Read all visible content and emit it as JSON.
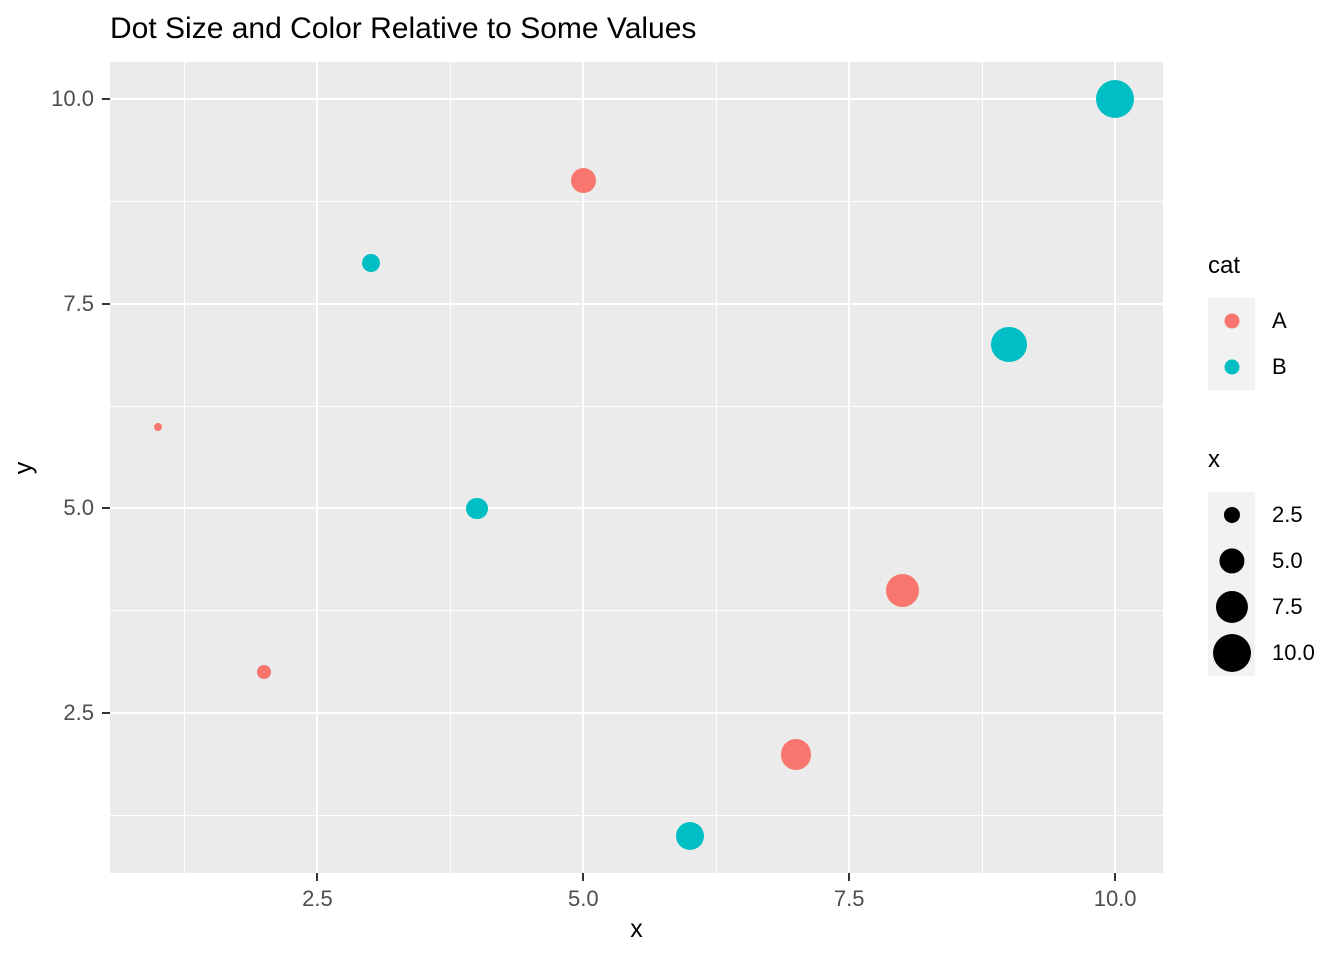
{
  "title": "Dot Size and Color Relative to Some Values",
  "colors": {
    "background": "#FFFFFF",
    "panel_bg": "#EBEBEB",
    "grid": "#FFFFFF",
    "legend_key_bg": "#F2F2F2",
    "tick_text": "#4D4D4D",
    "tick_mark": "#333333",
    "text": "#000000",
    "cat_A": "#F8766D",
    "cat_B": "#00BFC4",
    "size_dot": "#000000"
  },
  "chart_data": {
    "type": "scatter",
    "title": "Dot Size and Color Relative to Some Values",
    "xlabel": "x",
    "ylabel": "y",
    "xlim": [
      0.55,
      10.45
    ],
    "ylim": [
      0.55,
      10.45
    ],
    "x_ticks": [
      2.5,
      5.0,
      7.5,
      10.0
    ],
    "x_tick_labels": [
      "2.5",
      "5.0",
      "7.5",
      "10.0"
    ],
    "y_ticks": [
      2.5,
      5.0,
      7.5,
      10.0
    ],
    "y_tick_labels": [
      "2.5",
      "5.0",
      "7.5",
      "10.0"
    ],
    "grid": "major+minor",
    "legend_position": "right",
    "color_aesthetic": "cat",
    "size_aesthetic": "x",
    "points": [
      {
        "x": 1,
        "y": 6,
        "cat": "A"
      },
      {
        "x": 2,
        "y": 3,
        "cat": "A"
      },
      {
        "x": 3,
        "y": 8,
        "cat": "B"
      },
      {
        "x": 4,
        "y": 5,
        "cat": "B"
      },
      {
        "x": 5,
        "y": 9,
        "cat": "A"
      },
      {
        "x": 6,
        "y": 1,
        "cat": "B"
      },
      {
        "x": 7,
        "y": 2,
        "cat": "A"
      },
      {
        "x": 8,
        "y": 4,
        "cat": "A"
      },
      {
        "x": 9,
        "y": 7,
        "cat": "B"
      },
      {
        "x": 10,
        "y": 10,
        "cat": "B"
      }
    ],
    "series": [
      {
        "name": "A",
        "color": "#F8766D",
        "points": [
          [
            1,
            6
          ],
          [
            2,
            3
          ],
          [
            5,
            9
          ],
          [
            7,
            2
          ],
          [
            8,
            4
          ]
        ]
      },
      {
        "name": "B",
        "color": "#00BFC4",
        "points": [
          [
            3,
            8
          ],
          [
            4,
            5
          ],
          [
            6,
            1
          ],
          [
            9,
            7
          ],
          [
            10,
            10
          ]
        ]
      }
    ]
  },
  "legend_cat": {
    "title": "cat",
    "entries": [
      {
        "label": "A",
        "color": "#F8766D"
      },
      {
        "label": "B",
        "color": "#00BFC4"
      }
    ]
  },
  "legend_size": {
    "title": "x",
    "entries": [
      {
        "label": "2.5",
        "value": 2.5
      },
      {
        "label": "5.0",
        "value": 5.0
      },
      {
        "label": "7.5",
        "value": 7.5
      },
      {
        "label": "10.0",
        "value": 10.0
      }
    ],
    "dot_color": "#000000"
  }
}
